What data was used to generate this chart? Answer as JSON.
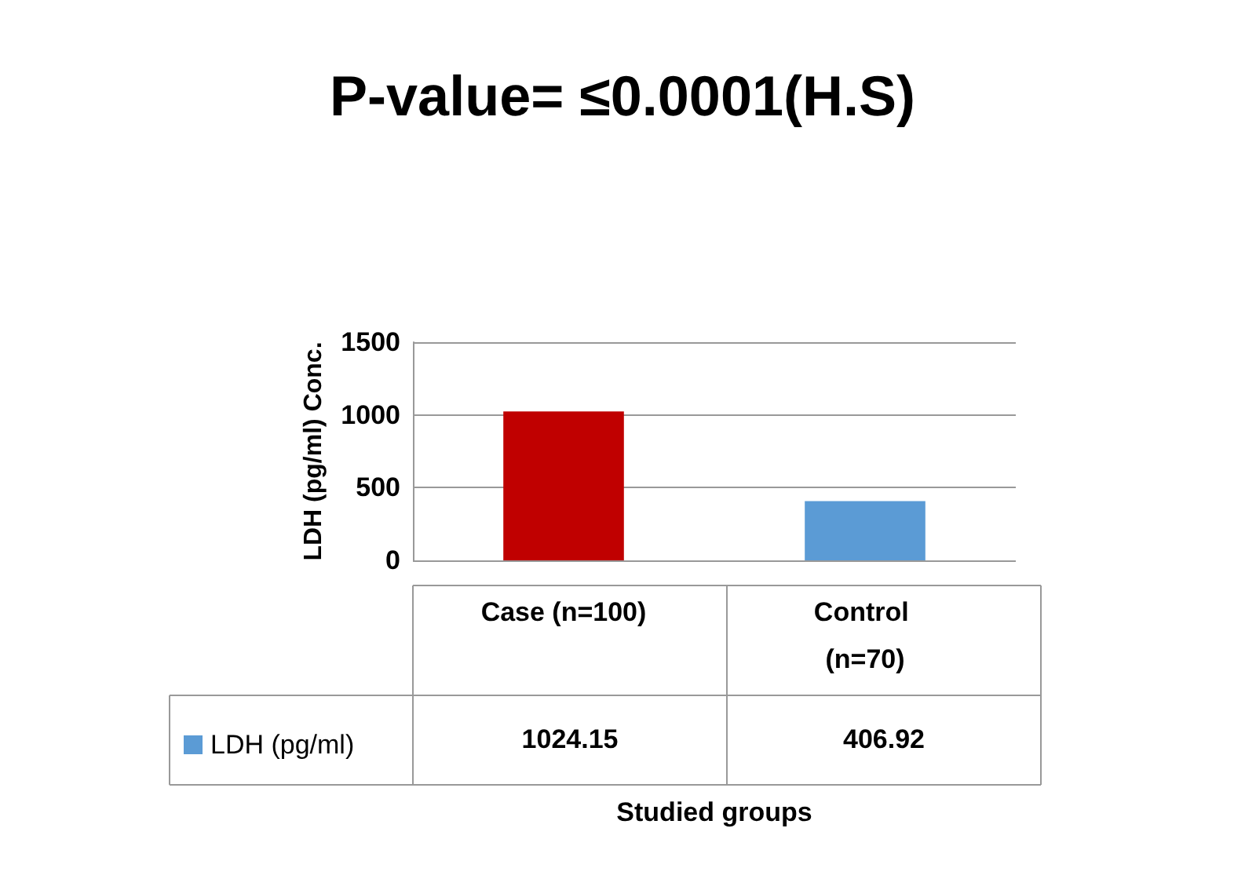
{
  "chart_data": {
    "type": "bar",
    "title": "P-value= ≤0.0001(H.S)",
    "xlabel": "Studied groups",
    "ylabel": "LDH (pg/ml) Conc.",
    "categories": [
      "Case (n=100)",
      "Control (n=70)"
    ],
    "series": [
      {
        "name": "LDH (pg/ml)",
        "color": "#5b9bd5",
        "colors": [
          "#c00000",
          "#5b9bd5"
        ],
        "values": [
          1024.15,
          406.92
        ]
      }
    ],
    "ylim": [
      0,
      1500
    ],
    "yticks": [
      0,
      500,
      1000,
      1500
    ],
    "grid": "y",
    "legend": "bottom left",
    "data_labels": true
  }
}
